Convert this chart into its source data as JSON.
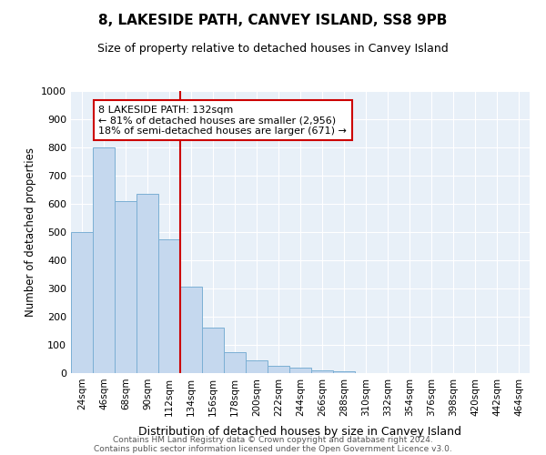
{
  "title1": "8, LAKESIDE PATH, CANVEY ISLAND, SS8 9PB",
  "title2": "Size of property relative to detached houses in Canvey Island",
  "xlabel": "Distribution of detached houses by size in Canvey Island",
  "ylabel": "Number of detached properties",
  "categories": [
    "24sqm",
    "46sqm",
    "68sqm",
    "90sqm",
    "112sqm",
    "134sqm",
    "156sqm",
    "178sqm",
    "200sqm",
    "222sqm",
    "244sqm",
    "266sqm",
    "288sqm",
    "310sqm",
    "332sqm",
    "354sqm",
    "376sqm",
    "398sqm",
    "420sqm",
    "442sqm",
    "464sqm"
  ],
  "values": [
    500,
    800,
    610,
    635,
    475,
    305,
    162,
    75,
    45,
    25,
    20,
    10,
    8,
    0,
    0,
    0,
    0,
    0,
    0,
    0,
    0
  ],
  "bar_color": "#c5d8ee",
  "bar_edge_color": "#7bafd4",
  "background_color": "#e8f0f8",
  "vline_color": "#cc0000",
  "annotation_line1": "8 LAKESIDE PATH: 132sqm",
  "annotation_line2": "← 81% of detached houses are smaller (2,956)",
  "annotation_line3": "18% of semi-detached houses are larger (671) →",
  "annotation_box_color": "white",
  "annotation_box_edge": "#cc0000",
  "ylim": [
    0,
    1000
  ],
  "yticks": [
    0,
    100,
    200,
    300,
    400,
    500,
    600,
    700,
    800,
    900,
    1000
  ],
  "title1_fontsize": 11,
  "title2_fontsize": 9,
  "footer1": "Contains HM Land Registry data © Crown copyright and database right 2024.",
  "footer2": "Contains public sector information licensed under the Open Government Licence v3.0."
}
